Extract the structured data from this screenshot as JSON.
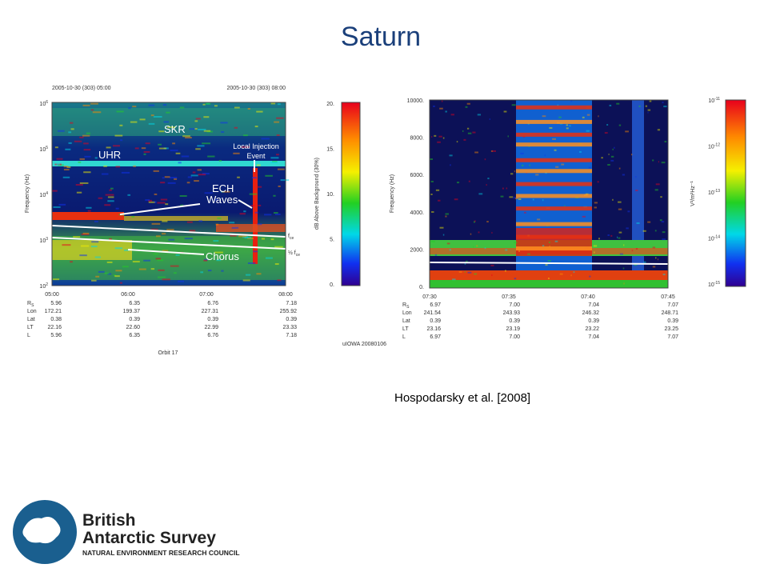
{
  "title": "Saturn",
  "citation": "Hospodarsky et al. [2008]",
  "logo": {
    "line1": "British",
    "line2": "Antarctic Survey",
    "line3": "NATURAL ENVIRONMENT RESEARCH COUNCIL"
  },
  "left_panel": {
    "start_date": "2005-10-30 (303) 05:00",
    "end_date": "2005-10-30 (303) 08:00",
    "y_label": "Frequency (Hz)",
    "y_ticks": [
      {
        "base": "10",
        "exp": "6"
      },
      {
        "base": "10",
        "exp": "5"
      },
      {
        "base": "10",
        "exp": "4"
      },
      {
        "base": "10",
        "exp": "3"
      },
      {
        "base": "10",
        "exp": "2"
      }
    ],
    "x_ticks": [
      "05:00",
      "06:00",
      "07:00",
      "08:00"
    ],
    "annotations": {
      "skr": "SKR",
      "uhr": "UHR",
      "ech1": "ECH",
      "ech2": "Waves",
      "inj1": "Local Injection",
      "inj2": "Event",
      "chorus": "Chorus"
    },
    "fce": {
      "main": "f",
      "sub": "ce"
    },
    "half_fce": {
      "pre": "½ f",
      "sub": "ce"
    },
    "colorbar_label": "dB Above Background (30%)",
    "colorbar_ticks": [
      "20.",
      "15.",
      "10.",
      "5.",
      "0."
    ],
    "orbit": "Orbit 17",
    "footnote": "uIOWA 20080106",
    "table": {
      "labels": [
        {
          "main": "R",
          "sub": "S"
        },
        {
          "main": "Lon"
        },
        {
          "main": "Lat"
        },
        {
          "main": "LT"
        },
        {
          "main": "L"
        }
      ],
      "rows": [
        [
          "5.96",
          "6.35",
          "6.76",
          "7.18"
        ],
        [
          "172.21",
          "199.37",
          "227.31",
          "255.92"
        ],
        [
          "0.38",
          "0.39",
          "0.39",
          "0.39"
        ],
        [
          "22.16",
          "22.60",
          "22.99",
          "23.33"
        ],
        [
          "5.96",
          "6.35",
          "6.76",
          "7.18"
        ]
      ]
    }
  },
  "right_panel": {
    "y_label": "Frequency (Hz)",
    "y_ticks": [
      "10000.",
      "8000.",
      "6000.",
      "4000.",
      "2000.",
      "0."
    ],
    "x_ticks": [
      "07:30",
      "07:35",
      "07:40",
      "07:45"
    ],
    "colorbar_label": "V²/m²Hz⁻¹",
    "colorbar_ticks": [
      {
        "base": "10",
        "exp": "-11"
      },
      {
        "base": "10",
        "exp": "-12"
      },
      {
        "base": "10",
        "exp": "-13"
      },
      {
        "base": "10",
        "exp": "-14"
      },
      {
        "base": "10",
        "exp": "-15"
      }
    ],
    "table": {
      "labels": [
        {
          "main": "R",
          "sub": "S"
        },
        {
          "main": "Lon"
        },
        {
          "main": "Lat"
        },
        {
          "main": "LT"
        },
        {
          "main": "L"
        }
      ],
      "rows": [
        [
          "6.97",
          "7.00",
          "7.04",
          "7.07"
        ],
        [
          "241.54",
          "243.93",
          "246.32",
          "248.71"
        ],
        [
          "0.39",
          "0.39",
          "0.39",
          "0.39"
        ],
        [
          "23.16",
          "23.19",
          "23.22",
          "23.25"
        ],
        [
          "6.97",
          "7.00",
          "7.04",
          "7.07"
        ]
      ]
    }
  }
}
